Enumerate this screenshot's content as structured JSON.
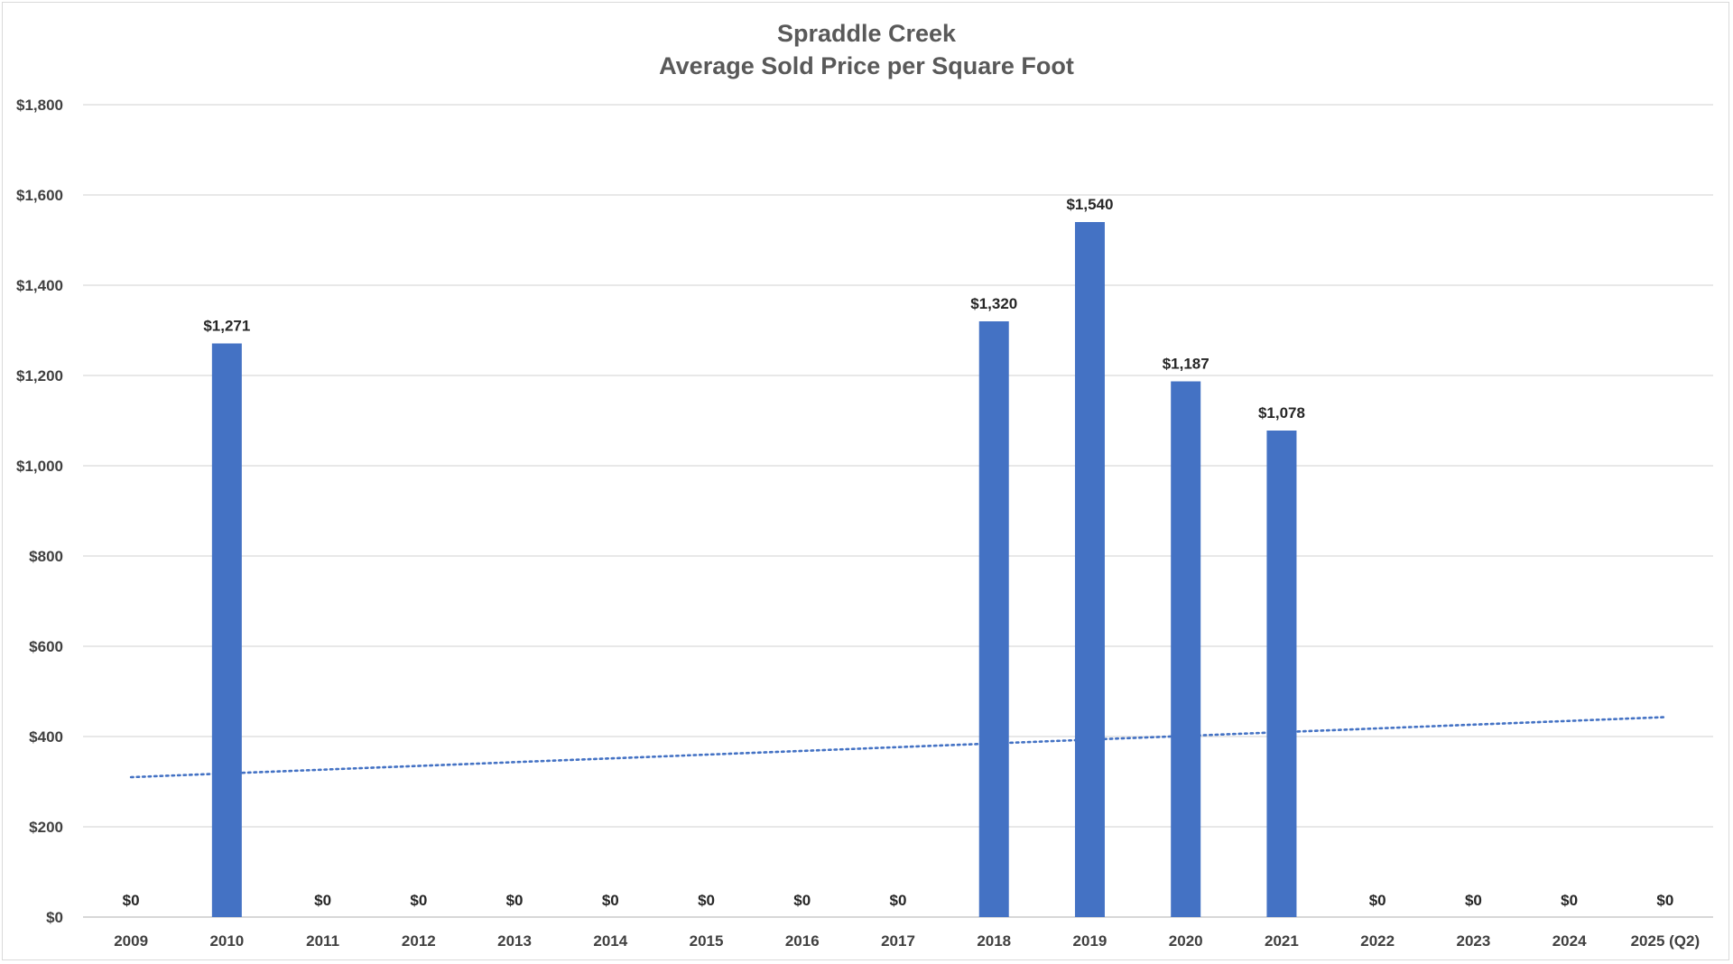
{
  "chart_data": {
    "type": "bar",
    "title": "Spraddle Creek",
    "subtitle": "Average Sold Price per Square Foot",
    "categories": [
      "2009",
      "2010",
      "2011",
      "2012",
      "2013",
      "2014",
      "2015",
      "2016",
      "2017",
      "2018",
      "2019",
      "2020",
      "2021",
      "2022",
      "2023",
      "2024",
      "2025 (Q2)"
    ],
    "values": [
      0,
      1271,
      0,
      0,
      0,
      0,
      0,
      0,
      0,
      1320,
      1540,
      1187,
      1078,
      0,
      0,
      0,
      0
    ],
    "data_labels": [
      "$0",
      "$1,271",
      "$0",
      "$0",
      "$0",
      "$0",
      "$0",
      "$0",
      "$0",
      "$1,320",
      "$1,540",
      "$1,187",
      "$1,078",
      "$0",
      "$0",
      "$0",
      "$0"
    ],
    "ylim": [
      0,
      1800
    ],
    "yticks": [
      0,
      200,
      400,
      600,
      800,
      1000,
      1200,
      1400,
      1600,
      1800
    ],
    "ytick_labels": [
      "$0",
      "$200",
      "$400",
      "$600",
      "$800",
      "$1,000",
      "$1,200",
      "$1,400",
      "$1,600",
      "$1,800"
    ],
    "xlabel": "",
    "ylabel": "",
    "grid": true,
    "legend": "none",
    "trendline": {
      "type": "linear",
      "style": "dotted",
      "start_value": 310,
      "end_value": 443
    },
    "colors": {
      "bar": "#4472C4",
      "trendline": "#4472C4",
      "grid": "#d9d9d9"
    }
  }
}
